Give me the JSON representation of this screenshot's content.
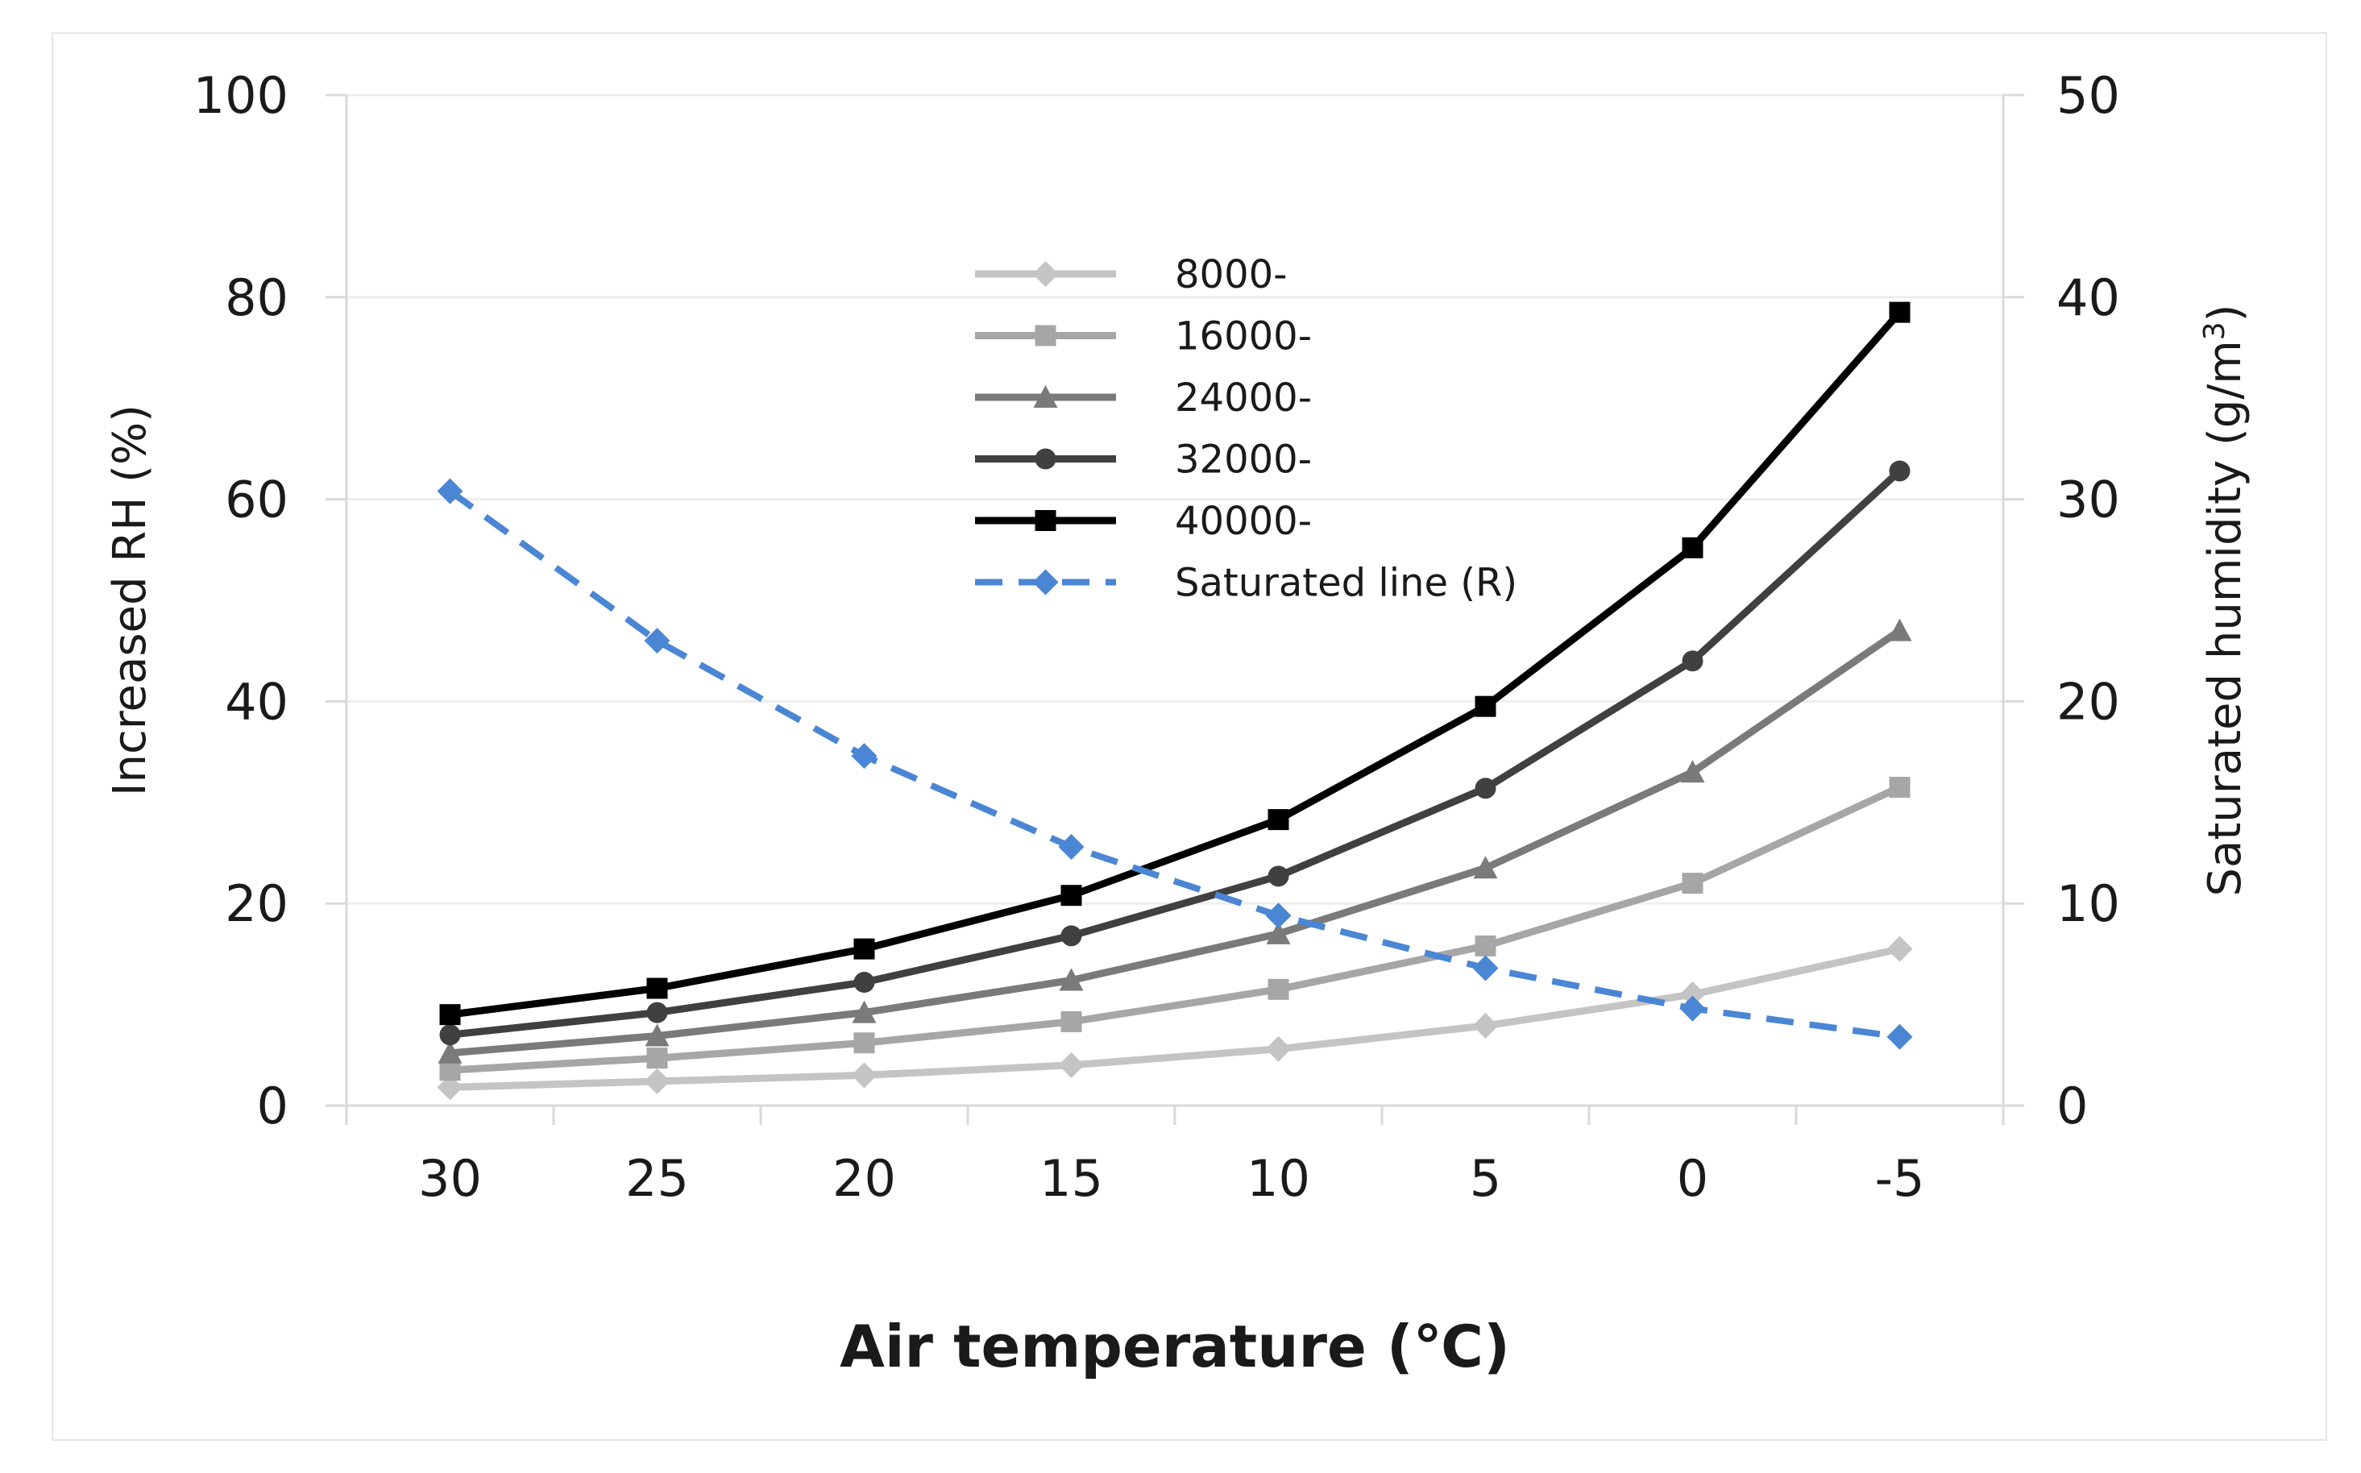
{
  "chart_data": {
    "type": "line",
    "title": "",
    "xlabel": "Air  temperature (℃)",
    "ylabel": "Increased RH (%)",
    "y2label": "Saturated humidity (g/m",
    "y2label_sup": "3",
    "y2label_end": ")",
    "categories": [
      "30",
      "25",
      "20",
      "15",
      "10",
      "5",
      "0",
      "-5"
    ],
    "ylim": [
      0,
      100
    ],
    "y2lim": [
      0,
      50
    ],
    "yticks": [
      "0",
      "20",
      "40",
      "60",
      "80",
      "100"
    ],
    "y2ticks": [
      "0",
      "10",
      "20",
      "30",
      "40",
      "50"
    ],
    "grid": true,
    "legend_position": "top-center",
    "series": [
      {
        "name": "8000-",
        "axis": "left",
        "color": "#c4c4c4",
        "marker": "diamond",
        "dash": false,
        "values": [
          1.8,
          2.4,
          3.0,
          4.0,
          5.6,
          7.9,
          11.0,
          15.5
        ]
      },
      {
        "name": "16000-",
        "axis": "left",
        "color": "#a6a6a6",
        "marker": "square",
        "dash": false,
        "values": [
          3.5,
          4.7,
          6.2,
          8.3,
          11.5,
          15.8,
          22.0,
          31.5
        ]
      },
      {
        "name": "24000-",
        "axis": "left",
        "color": "#7a7a7a",
        "marker": "triangle",
        "dash": false,
        "values": [
          5.2,
          6.9,
          9.2,
          12.4,
          17.0,
          23.5,
          33.0,
          47.0
        ]
      },
      {
        "name": "32000-",
        "axis": "left",
        "color": "#404040",
        "marker": "circle",
        "dash": false,
        "values": [
          7.0,
          9.2,
          12.2,
          16.8,
          22.7,
          31.4,
          44.0,
          62.8
        ]
      },
      {
        "name": "40000-",
        "axis": "left",
        "color": "#000000",
        "marker": "square",
        "dash": false,
        "values": [
          9.0,
          11.6,
          15.5,
          20.8,
          28.3,
          39.5,
          55.2,
          78.5
        ]
      },
      {
        "name": "Saturated line (R)",
        "axis": "right",
        "color": "#4a86d4",
        "marker": "diamond",
        "dash": true,
        "values": [
          30.4,
          23.0,
          17.3,
          12.8,
          9.4,
          6.8,
          4.8,
          3.4
        ]
      }
    ]
  }
}
